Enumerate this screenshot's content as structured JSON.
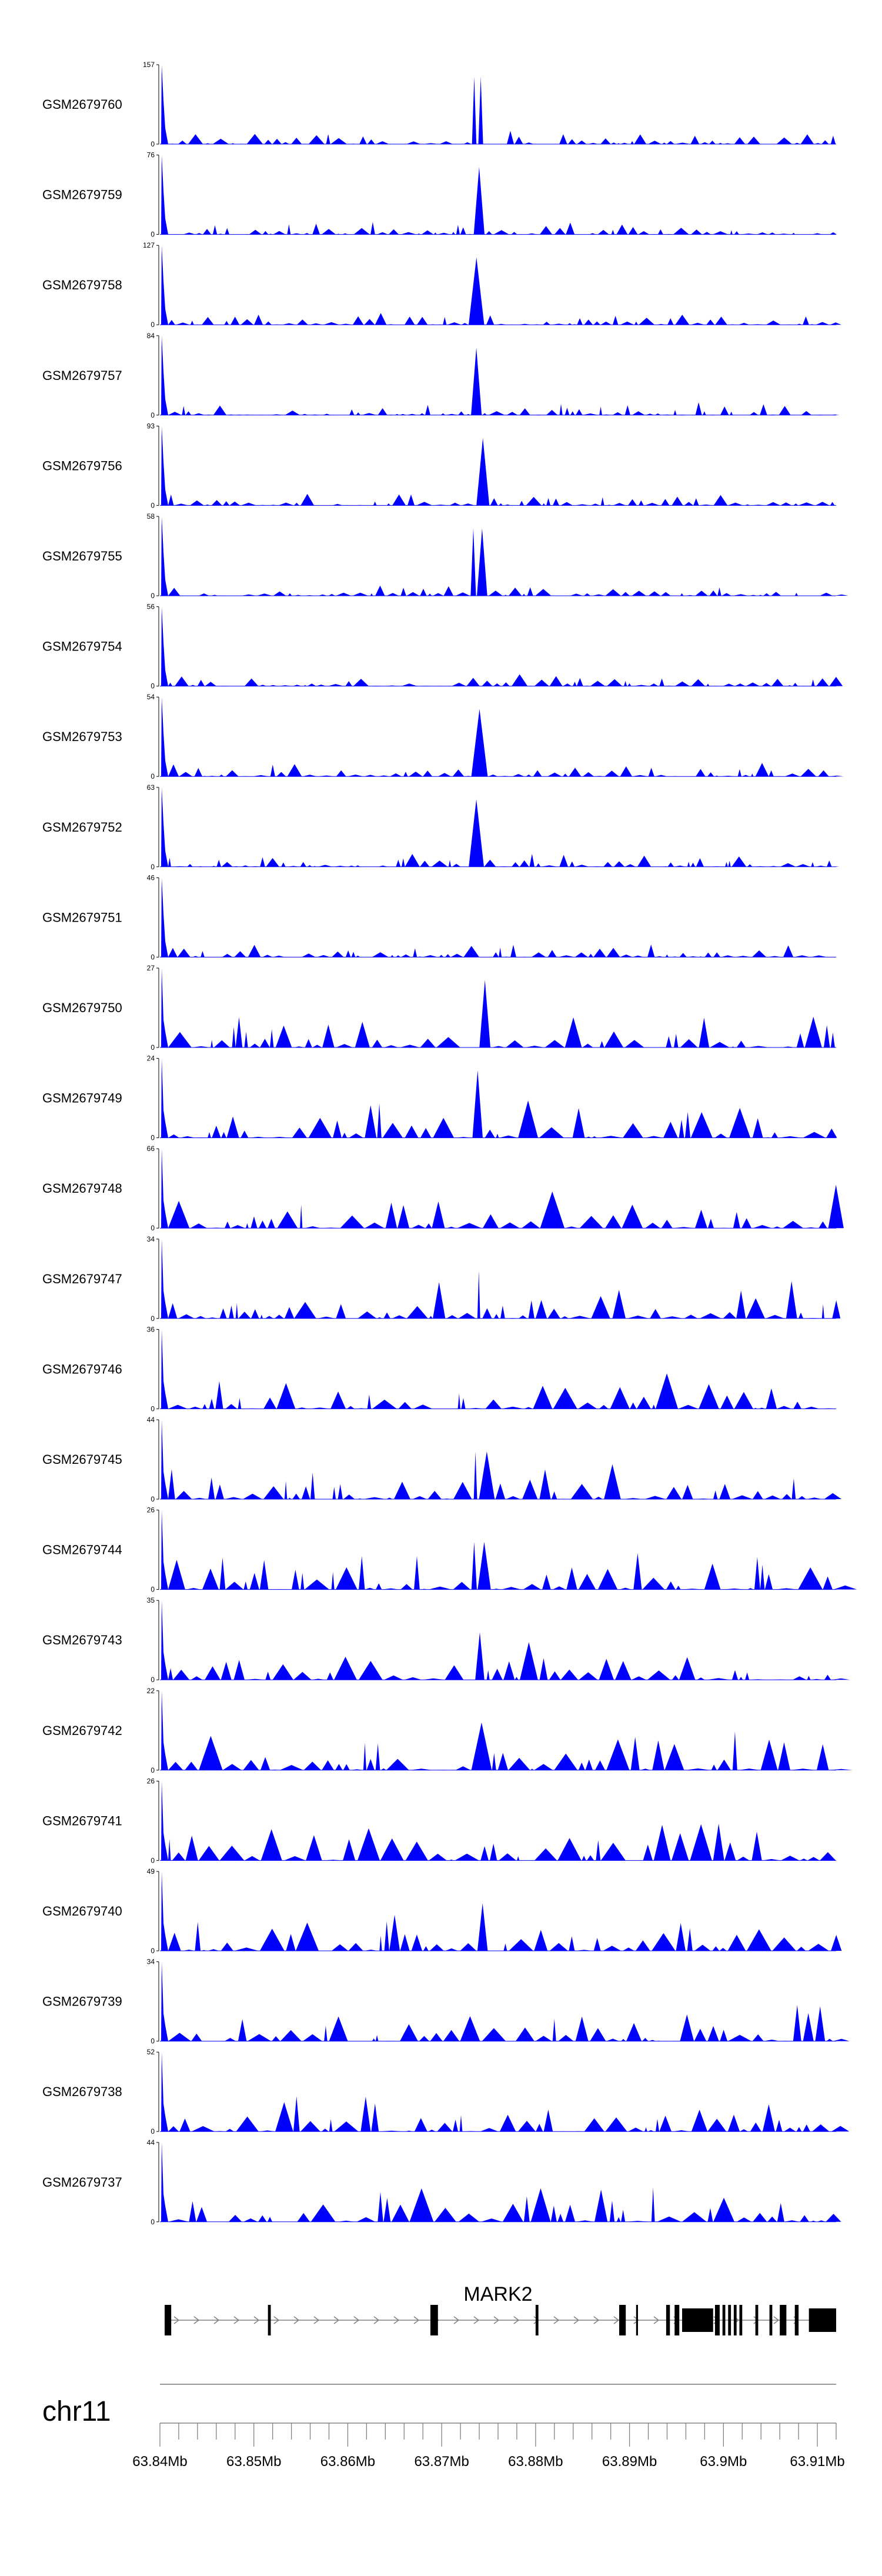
{
  "chart_data": {
    "type": "area",
    "chromosome": "chr11",
    "gene": "MARK2",
    "x_range_mb": [
      63.84,
      63.912
    ],
    "x_ticks": [
      "63.84Mb",
      "63.85Mb",
      "63.86Mb",
      "63.87Mb",
      "63.88Mb",
      "63.89Mb",
      "63.9Mb",
      "63.91Mb"
    ],
    "fill_color": "#0000ff",
    "tracks": [
      {
        "name": "GSM2679760",
        "ymax": 157,
        "ymin": 0
      },
      {
        "name": "GSM2679759",
        "ymax": 76,
        "ymin": 0
      },
      {
        "name": "GSM2679758",
        "ymax": 127,
        "ymin": 0
      },
      {
        "name": "GSM2679757",
        "ymax": 84,
        "ymin": 0
      },
      {
        "name": "GSM2679756",
        "ymax": 93,
        "ymin": 0
      },
      {
        "name": "GSM2679755",
        "ymax": 58,
        "ymin": 0
      },
      {
        "name": "GSM2679754",
        "ymax": 56,
        "ymin": 0
      },
      {
        "name": "GSM2679753",
        "ymax": 54,
        "ymin": 0
      },
      {
        "name": "GSM2679752",
        "ymax": 63,
        "ymin": 0
      },
      {
        "name": "GSM2679751",
        "ymax": 46,
        "ymin": 0
      },
      {
        "name": "GSM2679750",
        "ymax": 27,
        "ymin": 0
      },
      {
        "name": "GSM2679749",
        "ymax": 24,
        "ymin": 0
      },
      {
        "name": "GSM2679748",
        "ymax": 66,
        "ymin": 0
      },
      {
        "name": "GSM2679747",
        "ymax": 34,
        "ymin": 0
      },
      {
        "name": "GSM2679746",
        "ymax": 36,
        "ymin": 0
      },
      {
        "name": "GSM2679745",
        "ymax": 44,
        "ymin": 0
      },
      {
        "name": "GSM2679744",
        "ymax": 26,
        "ymin": 0
      },
      {
        "name": "GSM2679743",
        "ymax": 35,
        "ymin": 0
      },
      {
        "name": "GSM2679742",
        "ymax": 22,
        "ymin": 0
      },
      {
        "name": "GSM2679741",
        "ymax": 26,
        "ymin": 0
      },
      {
        "name": "GSM2679740",
        "ymax": 49,
        "ymin": 0
      },
      {
        "name": "GSM2679739",
        "ymax": 34,
        "ymin": 0
      },
      {
        "name": "GSM2679738",
        "ymax": 52,
        "ymin": 0
      },
      {
        "name": "GSM2679737",
        "ymax": 44,
        "ymin": 0
      }
    ],
    "gene_model": {
      "strand": "+",
      "start_mb": 63.8405,
      "end_mb": 63.912,
      "exons_mb": [
        [
          63.8405,
          63.8412
        ],
        [
          63.8515,
          63.8518
        ],
        [
          63.8688,
          63.8696
        ],
        [
          63.88,
          63.8803
        ],
        [
          63.8889,
          63.8896
        ],
        [
          63.8907,
          63.8909
        ],
        [
          63.8939,
          63.8943
        ],
        [
          63.8948,
          63.8953
        ],
        [
          63.8956,
          63.8989
        ],
        [
          63.8991,
          63.8996
        ],
        [
          63.8999,
          63.9002
        ],
        [
          63.9005,
          63.9008
        ],
        [
          63.9011,
          63.9014
        ],
        [
          63.9017,
          63.902
        ],
        [
          63.9034,
          63.9037
        ],
        [
          63.9049,
          63.9052
        ],
        [
          63.906,
          63.9067
        ],
        [
          63.9076,
          63.908
        ],
        [
          63.9091,
          63.912
        ]
      ]
    }
  }
}
